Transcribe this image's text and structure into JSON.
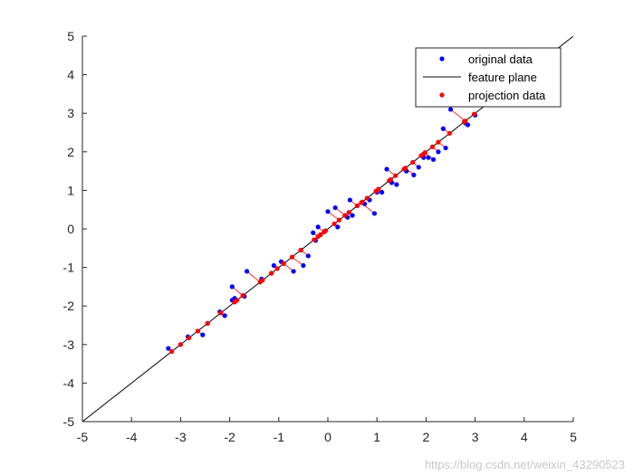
{
  "chart_data": {
    "type": "scatter",
    "xlim": [
      -5,
      5
    ],
    "ylim": [
      -5,
      5
    ],
    "xticks": [
      -5,
      -4,
      -3,
      -2,
      -1,
      0,
      1,
      2,
      3,
      4,
      5
    ],
    "yticks": [
      -5,
      -4,
      -3,
      -2,
      -1,
      0,
      1,
      2,
      3,
      4,
      5
    ],
    "grid": false,
    "legend_position": "top-right",
    "feature_line": {
      "name": "feature plane",
      "color": "#000000",
      "x": [
        -5,
        5
      ],
      "y": [
        -5,
        5
      ]
    },
    "series": [
      {
        "name": "original data",
        "color": "#0000ff",
        "marker": "dot",
        "points": [
          [
            -3.25,
            -3.1
          ],
          [
            -3.0,
            -3.0
          ],
          [
            -2.85,
            -2.8
          ],
          [
            -2.55,
            -2.75
          ],
          [
            -2.45,
            -2.45
          ],
          [
            -2.2,
            -2.15
          ],
          [
            -2.1,
            -2.25
          ],
          [
            -1.95,
            -1.5
          ],
          [
            -1.95,
            -1.85
          ],
          [
            -1.9,
            -1.8
          ],
          [
            -1.7,
            -1.75
          ],
          [
            -1.65,
            -1.1
          ],
          [
            -1.35,
            -1.3
          ],
          [
            -1.15,
            -1.15
          ],
          [
            -1.1,
            -0.95
          ],
          [
            -0.95,
            -0.85
          ],
          [
            -0.7,
            -1.1
          ],
          [
            -0.55,
            -0.55
          ],
          [
            -0.5,
            -0.95
          ],
          [
            -0.4,
            -0.7
          ],
          [
            -0.3,
            -0.1
          ],
          [
            -0.25,
            -0.3
          ],
          [
            -0.2,
            0.05
          ],
          [
            -0.15,
            -0.15
          ],
          [
            -0.05,
            -0.05
          ],
          [
            0.0,
            0.45
          ],
          [
            0.15,
            0.55
          ],
          [
            0.2,
            0.05
          ],
          [
            0.4,
            0.3
          ],
          [
            0.45,
            0.75
          ],
          [
            0.5,
            0.35
          ],
          [
            0.6,
            0.6
          ],
          [
            0.75,
            0.65
          ],
          [
            0.85,
            0.75
          ],
          [
            0.95,
            0.4
          ],
          [
            1.0,
            0.95
          ],
          [
            1.1,
            0.95
          ],
          [
            1.2,
            1.55
          ],
          [
            1.3,
            1.2
          ],
          [
            1.4,
            1.15
          ],
          [
            1.6,
            1.5
          ],
          [
            1.75,
            1.4
          ],
          [
            1.85,
            1.6
          ],
          [
            1.95,
            1.85
          ],
          [
            2.05,
            1.85
          ],
          [
            2.15,
            1.8
          ],
          [
            2.25,
            2.0
          ],
          [
            2.35,
            2.6
          ],
          [
            2.4,
            2.1
          ],
          [
            2.5,
            3.1
          ],
          [
            2.8,
            2.75
          ],
          [
            2.85,
            2.7
          ],
          [
            3.0,
            2.95
          ]
        ]
      },
      {
        "name": "projection data",
        "color": "#ff0000",
        "marker": "dot",
        "points": [
          [
            -3.18,
            -3.18
          ],
          [
            -3.0,
            -3.0
          ],
          [
            -2.83,
            -2.83
          ],
          [
            -2.65,
            -2.65
          ],
          [
            -2.45,
            -2.45
          ],
          [
            -2.18,
            -2.18
          ],
          [
            -2.18,
            -2.18
          ],
          [
            -1.73,
            -1.73
          ],
          [
            -1.9,
            -1.9
          ],
          [
            -1.85,
            -1.85
          ],
          [
            -1.73,
            -1.73
          ],
          [
            -1.38,
            -1.38
          ],
          [
            -1.33,
            -1.33
          ],
          [
            -1.15,
            -1.15
          ],
          [
            -1.03,
            -1.03
          ],
          [
            -0.9,
            -0.9
          ],
          [
            -0.9,
            -0.9
          ],
          [
            -0.55,
            -0.55
          ],
          [
            -0.73,
            -0.73
          ],
          [
            -0.55,
            -0.55
          ],
          [
            -0.2,
            -0.2
          ],
          [
            -0.28,
            -0.28
          ],
          [
            -0.08,
            -0.08
          ],
          [
            -0.15,
            -0.15
          ],
          [
            -0.05,
            -0.05
          ],
          [
            0.23,
            0.23
          ],
          [
            0.35,
            0.35
          ],
          [
            0.13,
            0.13
          ],
          [
            0.35,
            0.35
          ],
          [
            0.6,
            0.6
          ],
          [
            0.43,
            0.43
          ],
          [
            0.6,
            0.6
          ],
          [
            0.7,
            0.7
          ],
          [
            0.8,
            0.8
          ],
          [
            0.68,
            0.68
          ],
          [
            0.98,
            0.98
          ],
          [
            1.03,
            1.03
          ],
          [
            1.38,
            1.38
          ],
          [
            1.25,
            1.25
          ],
          [
            1.28,
            1.28
          ],
          [
            1.55,
            1.55
          ],
          [
            1.58,
            1.58
          ],
          [
            1.73,
            1.73
          ],
          [
            1.9,
            1.9
          ],
          [
            1.95,
            1.95
          ],
          [
            1.98,
            1.98
          ],
          [
            2.13,
            2.13
          ],
          [
            2.48,
            2.48
          ],
          [
            2.25,
            2.25
          ],
          [
            2.8,
            2.8
          ],
          [
            2.78,
            2.78
          ],
          [
            2.78,
            2.78
          ],
          [
            2.98,
            2.98
          ]
        ]
      }
    ],
    "legend": [
      {
        "label": "original data",
        "kind": "dot",
        "color": "#0000ff"
      },
      {
        "label": "feature plane",
        "kind": "line",
        "color": "#000000"
      },
      {
        "label": "projection data",
        "kind": "dot",
        "color": "#ff0000"
      }
    ]
  },
  "watermark": "https://blog.csdn.net/weixin_43290523"
}
